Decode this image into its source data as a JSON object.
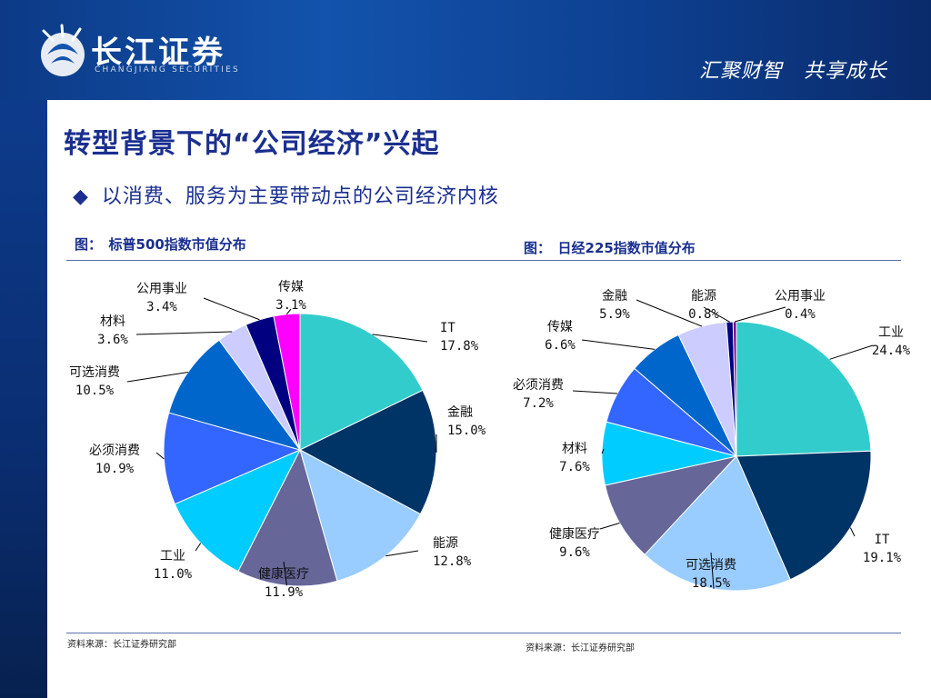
{
  "header": {
    "logo_cn": "长江证券",
    "logo_en": "CHANGJIANG SECURITIES",
    "slogan": "汇聚财智　共享成长"
  },
  "title": "转型背景下的“公司经济”兴起",
  "bullet": "以消费、服务为主要带动点的公司经济内核",
  "colors": {
    "header_blue": "#1353ad",
    "title_blue": "#1a2f8f"
  },
  "chart_data": [
    {
      "type": "pie",
      "title": "图：　标普500指数市值分布",
      "slices": [
        {
          "label": "IT",
          "value": 17.8,
          "value_text": "17.8%",
          "color": "#33cccc"
        },
        {
          "label": "金融",
          "value": 15.0,
          "value_text": "15.0%",
          "color": "#003366"
        },
        {
          "label": "能源",
          "value": 12.8,
          "value_text": "12.8%",
          "color": "#99ccff"
        },
        {
          "label": "健康医疗",
          "value": 11.9,
          "value_text": "11.9%",
          "color": "#666699"
        },
        {
          "label": "工业",
          "value": 11.0,
          "value_text": "11.0%",
          "color": "#00ccff"
        },
        {
          "label": "必须消费",
          "value": 10.9,
          "value_text": "10.9%",
          "color": "#3366ff"
        },
        {
          "label": "可选消费",
          "value": 10.5,
          "value_text": "10.5%",
          "color": "#0066cc"
        },
        {
          "label": "材料",
          "value": 3.6,
          "value_text": "3.6%",
          "color": "#ccccff"
        },
        {
          "label": "公用事业",
          "value": 3.4,
          "value_text": "3.4%",
          "color": "#000080"
        },
        {
          "label": "传媒",
          "value": 3.1,
          "value_text": "3.1%",
          "color": "#ff00ff"
        }
      ],
      "source": "资料来源：长江证券研究部"
    },
    {
      "type": "pie",
      "title": "图：　日经225指数市值分布",
      "slices": [
        {
          "label": "工业",
          "value": 24.4,
          "value_text": "24.4%",
          "color": "#33cccc"
        },
        {
          "label": "IT",
          "value": 19.1,
          "value_text": "19.1%",
          "color": "#003366"
        },
        {
          "label": "可选消费",
          "value": 18.5,
          "value_text": "18.5%",
          "color": "#99ccff"
        },
        {
          "label": "健康医疗",
          "value": 9.6,
          "value_text": "9.6%",
          "color": "#666699"
        },
        {
          "label": "材料",
          "value": 7.6,
          "value_text": "7.6%",
          "color": "#00ccff"
        },
        {
          "label": "必须消费",
          "value": 7.2,
          "value_text": "7.2%",
          "color": "#3366ff"
        },
        {
          "label": "传媒",
          "value": 6.6,
          "value_text": "6.6%",
          "color": "#0066cc"
        },
        {
          "label": "金融",
          "value": 5.9,
          "value_text": "5.9%",
          "color": "#ccccff"
        },
        {
          "label": "能源",
          "value": 0.8,
          "value_text": "0.8%",
          "color": "#000080"
        },
        {
          "label": "公用事业",
          "value": 0.4,
          "value_text": "0.4%",
          "color": "#800080"
        }
      ],
      "source": "资料来源：长江证券研究部"
    }
  ]
}
